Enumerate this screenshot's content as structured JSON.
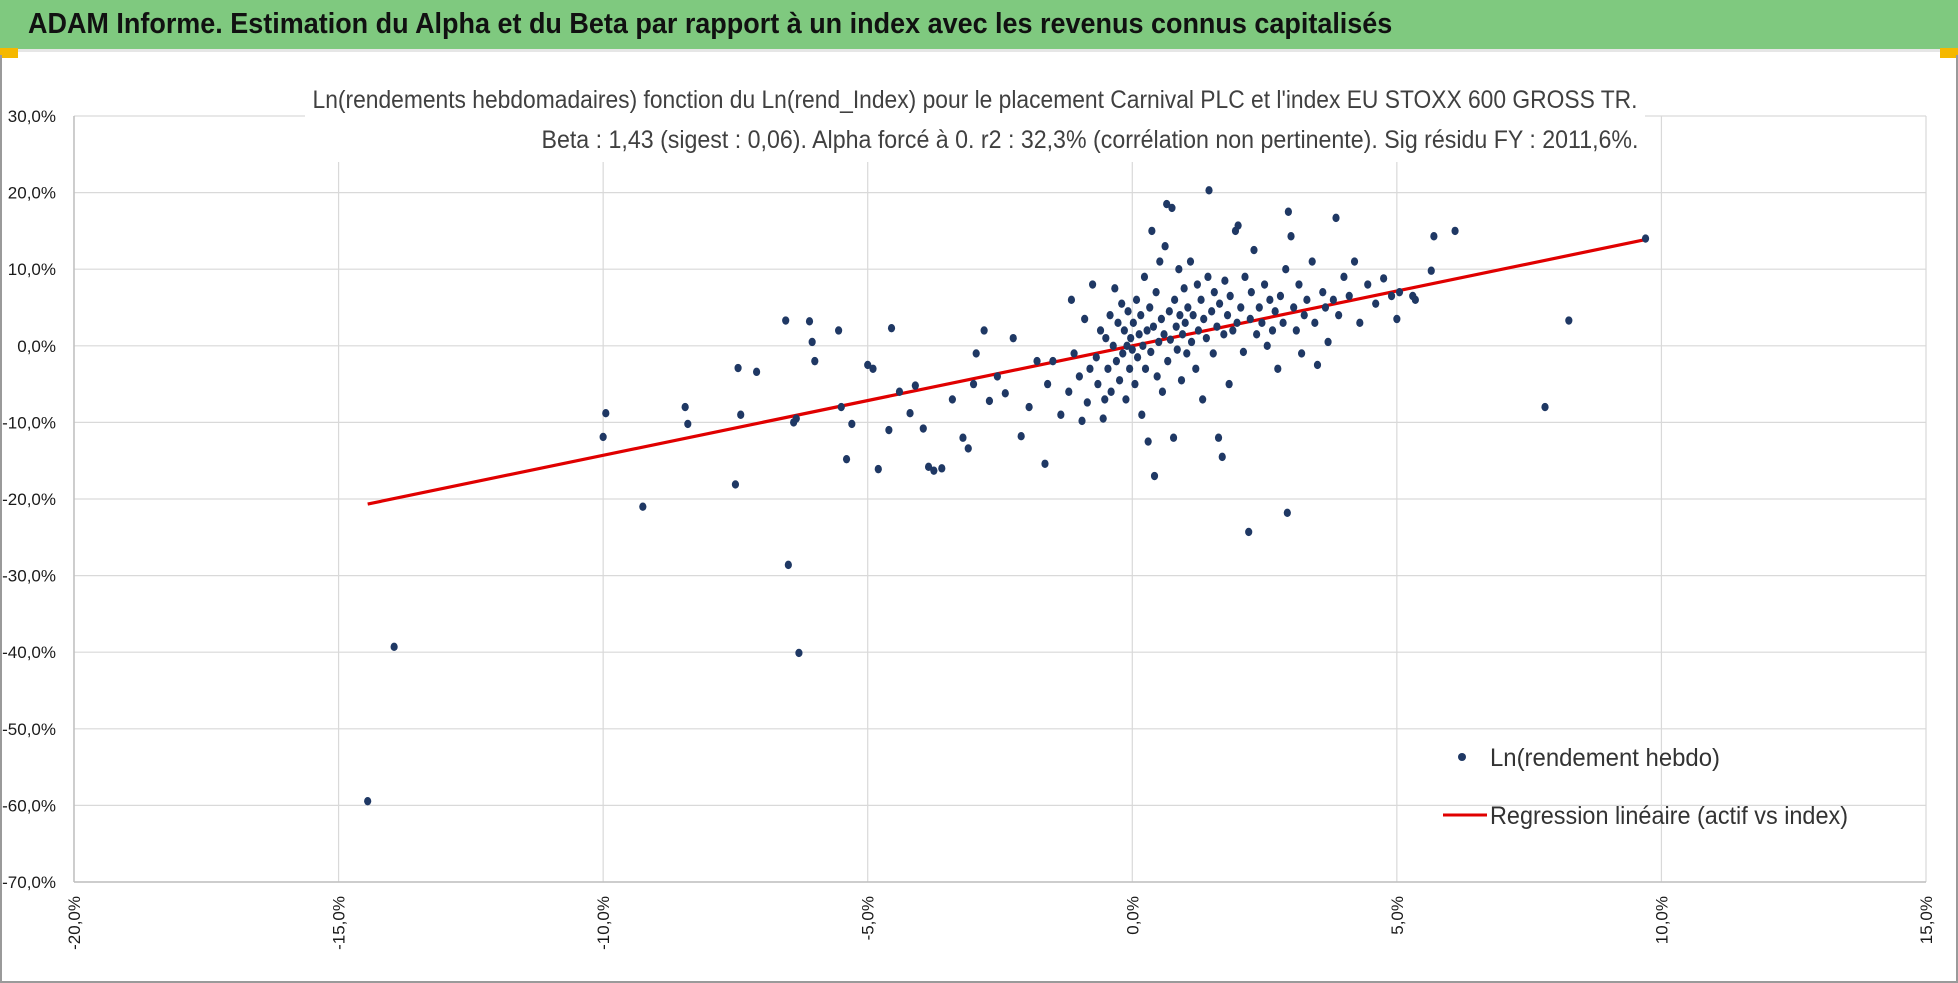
{
  "banner": {
    "title": "ADAM Informe. Estimation du Alpha et du Beta par rapport à un index avec les revenus connus capitalisés"
  },
  "colors": {
    "banner": "#7fc97f",
    "points": "#1f3864",
    "regression": "#e00000",
    "grid": "#d9d9d9"
  },
  "chart_data": {
    "type": "scatter",
    "title_line1": "Ln(rendements hebdomadaires) fonction du Ln(rend_Index) pour le placement Carnival PLC et l'index EU STOXX 600 GROSS TR.",
    "title_line2": "Beta : 1,43 (sigest : 0,06).  Alpha forcé à 0. r2 : 32,3% (corrélation non pertinente). Sig résidu FY : 2011,6%.",
    "xlim": [
      -0.2,
      0.15
    ],
    "ylim": [
      -0.7,
      0.3
    ],
    "x_ticks": [
      "-20,0%",
      "-15,0%",
      "-10,0%",
      "-5,0%",
      "0,0%",
      "5,0%",
      "10,0%",
      "15,0%"
    ],
    "x_tick_values": [
      -0.2,
      -0.15,
      -0.1,
      -0.05,
      0.0,
      0.05,
      0.1,
      0.15
    ],
    "y_ticks": [
      "30,0%",
      "20,0%",
      "10,0%",
      "0,0%",
      "-10,0%",
      "-20,0%",
      "-30,0%",
      "-40,0%",
      "-50,0%",
      "-60,0%",
      "-70,0%"
    ],
    "y_tick_values": [
      0.3,
      0.2,
      0.1,
      0.0,
      -0.1,
      -0.2,
      -0.3,
      -0.4,
      -0.5,
      -0.6,
      -0.7
    ],
    "grid": true,
    "legend_position": "bottom-right",
    "series": [
      {
        "name": "Ln(rendement hebdo)",
        "kind": "scatter",
        "points": [
          [
            -0.1445,
            -0.5945
          ],
          [
            -0.1395,
            -0.393
          ],
          [
            -0.1,
            -0.119
          ],
          [
            -0.0995,
            -0.088
          ],
          [
            -0.0925,
            -0.21
          ],
          [
            -0.0845,
            -0.08
          ],
          [
            -0.084,
            -0.102
          ],
          [
            -0.075,
            -0.181
          ],
          [
            -0.0745,
            -0.029
          ],
          [
            -0.074,
            -0.09
          ],
          [
            -0.071,
            -0.034
          ],
          [
            -0.0655,
            0.033
          ],
          [
            -0.065,
            -0.286
          ],
          [
            -0.064,
            -0.1
          ],
          [
            -0.0635,
            -0.095
          ],
          [
            -0.063,
            -0.401
          ],
          [
            -0.061,
            0.032
          ],
          [
            -0.0605,
            0.005
          ],
          [
            -0.06,
            -0.02
          ],
          [
            -0.0555,
            0.02
          ],
          [
            -0.055,
            -0.08
          ],
          [
            -0.054,
            -0.148
          ],
          [
            -0.053,
            -0.102
          ],
          [
            -0.05,
            -0.025
          ],
          [
            -0.049,
            -0.03
          ],
          [
            -0.048,
            -0.161
          ],
          [
            -0.046,
            -0.11
          ],
          [
            -0.0455,
            0.023
          ],
          [
            -0.044,
            -0.06
          ],
          [
            -0.042,
            -0.088
          ],
          [
            -0.041,
            -0.052
          ],
          [
            -0.0395,
            -0.108
          ],
          [
            -0.0385,
            -0.158
          ],
          [
            -0.0375,
            -0.163
          ],
          [
            -0.036,
            -0.16
          ],
          [
            -0.034,
            -0.07
          ],
          [
            -0.032,
            -0.12
          ],
          [
            -0.031,
            -0.134
          ],
          [
            -0.03,
            -0.05
          ],
          [
            -0.0295,
            -0.01
          ],
          [
            -0.028,
            0.02
          ],
          [
            -0.027,
            -0.072
          ],
          [
            -0.0255,
            -0.04
          ],
          [
            -0.024,
            -0.062
          ],
          [
            -0.0225,
            0.01
          ],
          [
            -0.021,
            -0.118
          ],
          [
            -0.0195,
            -0.08
          ],
          [
            -0.018,
            -0.02
          ],
          [
            -0.0165,
            -0.154
          ],
          [
            -0.016,
            -0.05
          ],
          [
            -0.015,
            -0.02
          ],
          [
            -0.0135,
            -0.09
          ],
          [
            -0.012,
            -0.06
          ],
          [
            -0.0115,
            0.06
          ],
          [
            -0.011,
            -0.01
          ],
          [
            -0.01,
            -0.04
          ],
          [
            -0.0095,
            -0.098
          ],
          [
            -0.009,
            0.035
          ],
          [
            -0.0085,
            -0.074
          ],
          [
            -0.008,
            -0.03
          ],
          [
            -0.0075,
            0.08
          ],
          [
            -0.0068,
            -0.015
          ],
          [
            -0.0065,
            -0.05
          ],
          [
            -0.006,
            0.02
          ],
          [
            -0.0055,
            -0.095
          ],
          [
            -0.0052,
            -0.07
          ],
          [
            -0.005,
            0.01
          ],
          [
            -0.0046,
            -0.03
          ],
          [
            -0.0042,
            0.04
          ],
          [
            -0.004,
            -0.06
          ],
          [
            -0.0036,
            0.0
          ],
          [
            -0.0033,
            0.075
          ],
          [
            -0.003,
            -0.02
          ],
          [
            -0.0027,
            0.03
          ],
          [
            -0.0024,
            -0.045
          ],
          [
            -0.002,
            0.055
          ],
          [
            -0.0018,
            -0.01
          ],
          [
            -0.0015,
            0.02
          ],
          [
            -0.0012,
            -0.07
          ],
          [
            -0.001,
            0.0
          ],
          [
            -0.0008,
            0.045
          ],
          [
            -0.0005,
            -0.03
          ],
          [
            -0.0003,
            0.01
          ],
          [
            0.0,
            -0.005
          ],
          [
            0.0002,
            0.03
          ],
          [
            0.0005,
            -0.05
          ],
          [
            0.0008,
            0.06
          ],
          [
            0.001,
            -0.015
          ],
          [
            0.0013,
            0.015
          ],
          [
            0.0016,
            0.04
          ],
          [
            0.0018,
            -0.09
          ],
          [
            0.002,
            0.0
          ],
          [
            0.0023,
            0.09
          ],
          [
            0.0025,
            -0.03
          ],
          [
            0.0028,
            0.02
          ],
          [
            0.003,
            -0.125
          ],
          [
            0.0033,
            0.05
          ],
          [
            0.0035,
            -0.008
          ],
          [
            0.0037,
            0.15
          ],
          [
            0.004,
            0.025
          ],
          [
            0.0042,
            -0.17
          ],
          [
            0.0045,
            0.07
          ],
          [
            0.0047,
            -0.04
          ],
          [
            0.005,
            0.005
          ],
          [
            0.0052,
            0.11
          ],
          [
            0.0055,
            0.035
          ],
          [
            0.0057,
            -0.06
          ],
          [
            0.006,
            0.015
          ],
          [
            0.0062,
            0.13
          ],
          [
            0.0065,
            0.185
          ],
          [
            0.0067,
            -0.02
          ],
          [
            0.007,
            0.045
          ],
          [
            0.0072,
            0.008
          ],
          [
            0.0075,
            0.18
          ],
          [
            0.0078,
            -0.12
          ],
          [
            0.008,
            0.06
          ],
          [
            0.0083,
            0.025
          ],
          [
            0.0085,
            -0.005
          ],
          [
            0.0088,
            0.1
          ],
          [
            0.009,
            0.04
          ],
          [
            0.0093,
            -0.045
          ],
          [
            0.0095,
            0.015
          ],
          [
            0.0098,
            0.075
          ],
          [
            0.01,
            0.03
          ],
          [
            0.0103,
            -0.01
          ],
          [
            0.0105,
            0.05
          ],
          [
            0.011,
            0.11
          ],
          [
            0.0112,
            0.005
          ],
          [
            0.0115,
            0.04
          ],
          [
            0.012,
            -0.03
          ],
          [
            0.0123,
            0.08
          ],
          [
            0.0125,
            0.02
          ],
          [
            0.013,
            0.06
          ],
          [
            0.0133,
            -0.07
          ],
          [
            0.0135,
            0.035
          ],
          [
            0.014,
            0.01
          ],
          [
            0.0143,
            0.09
          ],
          [
            0.0145,
            0.203
          ],
          [
            0.015,
            0.045
          ],
          [
            0.0153,
            -0.01
          ],
          [
            0.0155,
            0.07
          ],
          [
            0.016,
            0.025
          ],
          [
            0.0163,
            -0.12
          ],
          [
            0.0165,
            0.055
          ],
          [
            0.017,
            -0.145
          ],
          [
            0.0173,
            0.015
          ],
          [
            0.0175,
            0.085
          ],
          [
            0.018,
            0.04
          ],
          [
            0.0183,
            -0.05
          ],
          [
            0.0185,
            0.065
          ],
          [
            0.019,
            0.02
          ],
          [
            0.0195,
            0.15
          ],
          [
            0.0198,
            0.03
          ],
          [
            0.02,
            0.157
          ],
          [
            0.0205,
            0.05
          ],
          [
            0.021,
            -0.008
          ],
          [
            0.0213,
            0.09
          ],
          [
            0.022,
            -0.243
          ],
          [
            0.0223,
            0.035
          ],
          [
            0.0225,
            0.07
          ],
          [
            0.023,
            0.125
          ],
          [
            0.0235,
            0.015
          ],
          [
            0.024,
            0.05
          ],
          [
            0.0245,
            0.03
          ],
          [
            0.025,
            0.08
          ],
          [
            0.0255,
            0.0
          ],
          [
            0.026,
            0.06
          ],
          [
            0.0265,
            0.02
          ],
          [
            0.027,
            0.045
          ],
          [
            0.0275,
            -0.03
          ],
          [
            0.028,
            0.065
          ],
          [
            0.0285,
            0.03
          ],
          [
            0.029,
            0.1
          ],
          [
            0.0293,
            -0.218
          ],
          [
            0.0295,
            0.175
          ],
          [
            0.03,
            0.143
          ],
          [
            0.0305,
            0.05
          ],
          [
            0.031,
            0.02
          ],
          [
            0.0315,
            0.08
          ],
          [
            0.032,
            -0.01
          ],
          [
            0.0325,
            0.04
          ],
          [
            0.033,
            0.06
          ],
          [
            0.034,
            0.11
          ],
          [
            0.0345,
            0.03
          ],
          [
            0.035,
            -0.025
          ],
          [
            0.036,
            0.07
          ],
          [
            0.0365,
            0.05
          ],
          [
            0.037,
            0.005
          ],
          [
            0.038,
            0.06
          ],
          [
            0.0385,
            0.167
          ],
          [
            0.039,
            0.04
          ],
          [
            0.04,
            0.09
          ],
          [
            0.041,
            0.065
          ],
          [
            0.042,
            0.11
          ],
          [
            0.043,
            0.03
          ],
          [
            0.0445,
            0.08
          ],
          [
            0.046,
            0.055
          ],
          [
            0.0475,
            0.088
          ],
          [
            0.049,
            0.065
          ],
          [
            0.05,
            0.035
          ],
          [
            0.0505,
            0.07
          ],
          [
            0.053,
            0.065
          ],
          [
            0.0535,
            0.06
          ],
          [
            0.0565,
            0.098
          ],
          [
            0.057,
            0.143
          ],
          [
            0.061,
            0.15
          ],
          [
            0.078,
            -0.08
          ],
          [
            0.0825,
            0.033
          ],
          [
            0.097,
            0.14
          ]
        ]
      },
      {
        "name": "Regression linéaire (actif vs index)",
        "kind": "line",
        "points": [
          [
            -0.1445,
            -0.2066
          ],
          [
            0.097,
            0.1387
          ]
        ]
      }
    ]
  }
}
